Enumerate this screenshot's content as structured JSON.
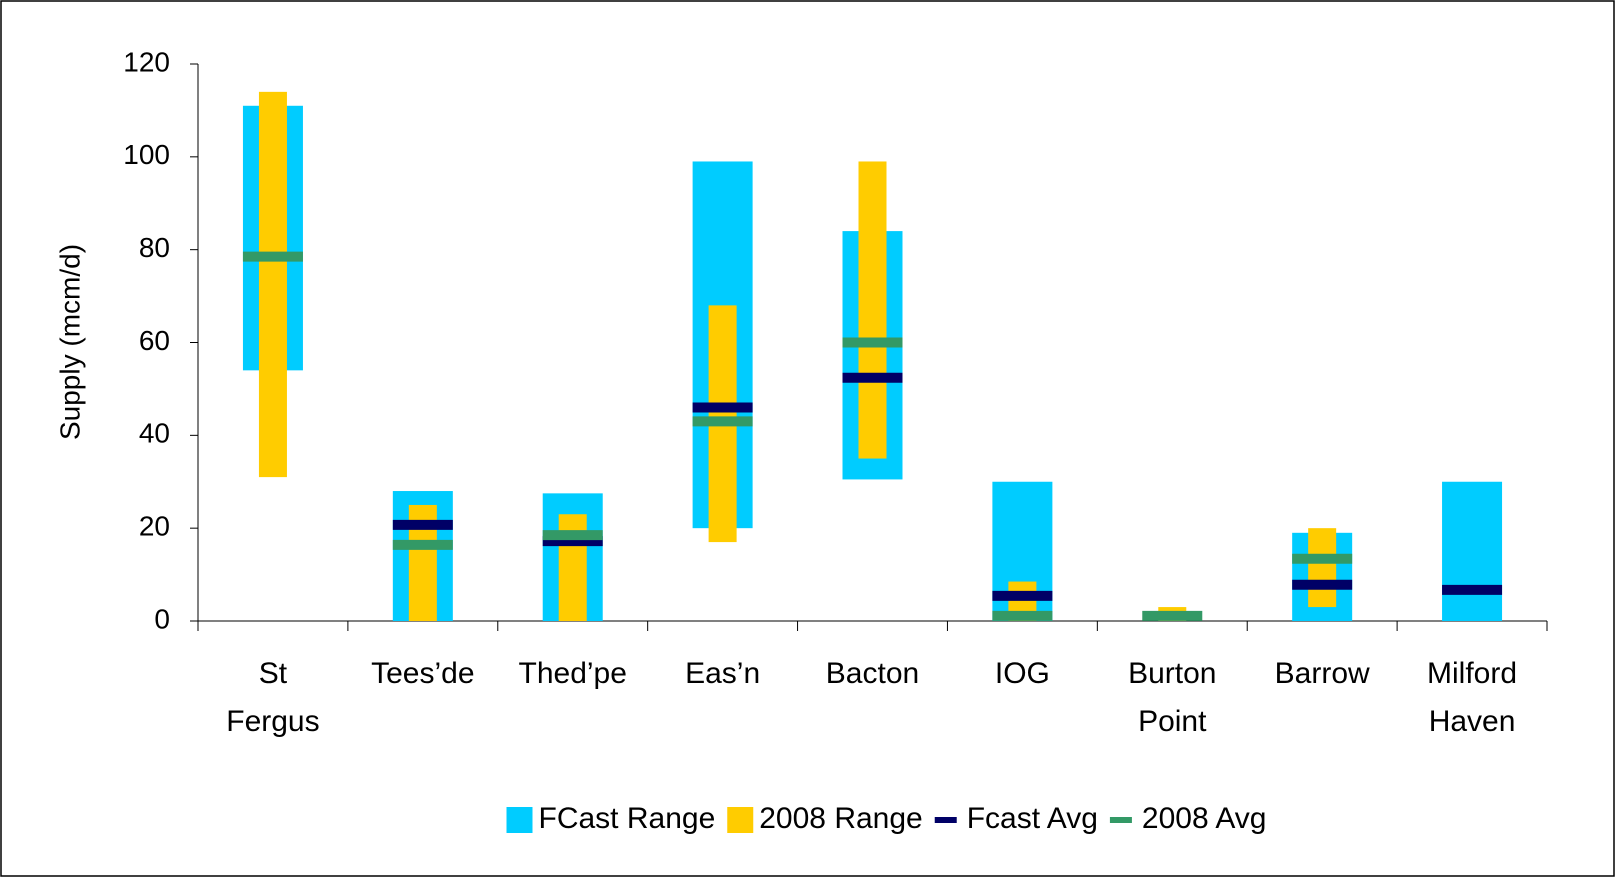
{
  "chart_data": {
    "type": "floating_bar",
    "y_axis_label": "Supply (mcm/d)",
    "categories": [
      "St Fergus",
      "Tees’de",
      "Thed’pe",
      "Eas’n",
      "Bacton",
      "IOG",
      "Burton Point",
      "Barrow",
      "Milford Haven"
    ],
    "ranges": [
      {
        "name": "FCast Range",
        "color": "#00ccff",
        "low": [
          54,
          0,
          0,
          20,
          30.5,
          0,
          null,
          0,
          0
        ],
        "high": [
          111,
          28,
          27.5,
          99,
          84,
          30,
          null,
          19,
          30
        ]
      },
      {
        "name": "2008 Range",
        "color": "#ffcc00",
        "low": [
          31,
          0,
          0,
          17,
          35,
          0,
          0,
          3,
          null
        ],
        "high": [
          114,
          25,
          23,
          68,
          99,
          8.5,
          3,
          20,
          null
        ]
      }
    ],
    "averages": [
      {
        "name": "Fcast Avg",
        "color": "#000066",
        "values": [
          null,
          20.7,
          17.2,
          46,
          52.4,
          5.4,
          null,
          7.8,
          6.7
        ]
      },
      {
        "name": "2008 Avg",
        "color": "#339966",
        "values": [
          78.5,
          16.4,
          18.5,
          43,
          60,
          1.1,
          1.1,
          13.4,
          null
        ]
      }
    ],
    "ylim": [
      0,
      120
    ],
    "yticks": [
      0,
      20,
      40,
      60,
      80,
      100,
      120
    ],
    "legend": "bottom"
  }
}
